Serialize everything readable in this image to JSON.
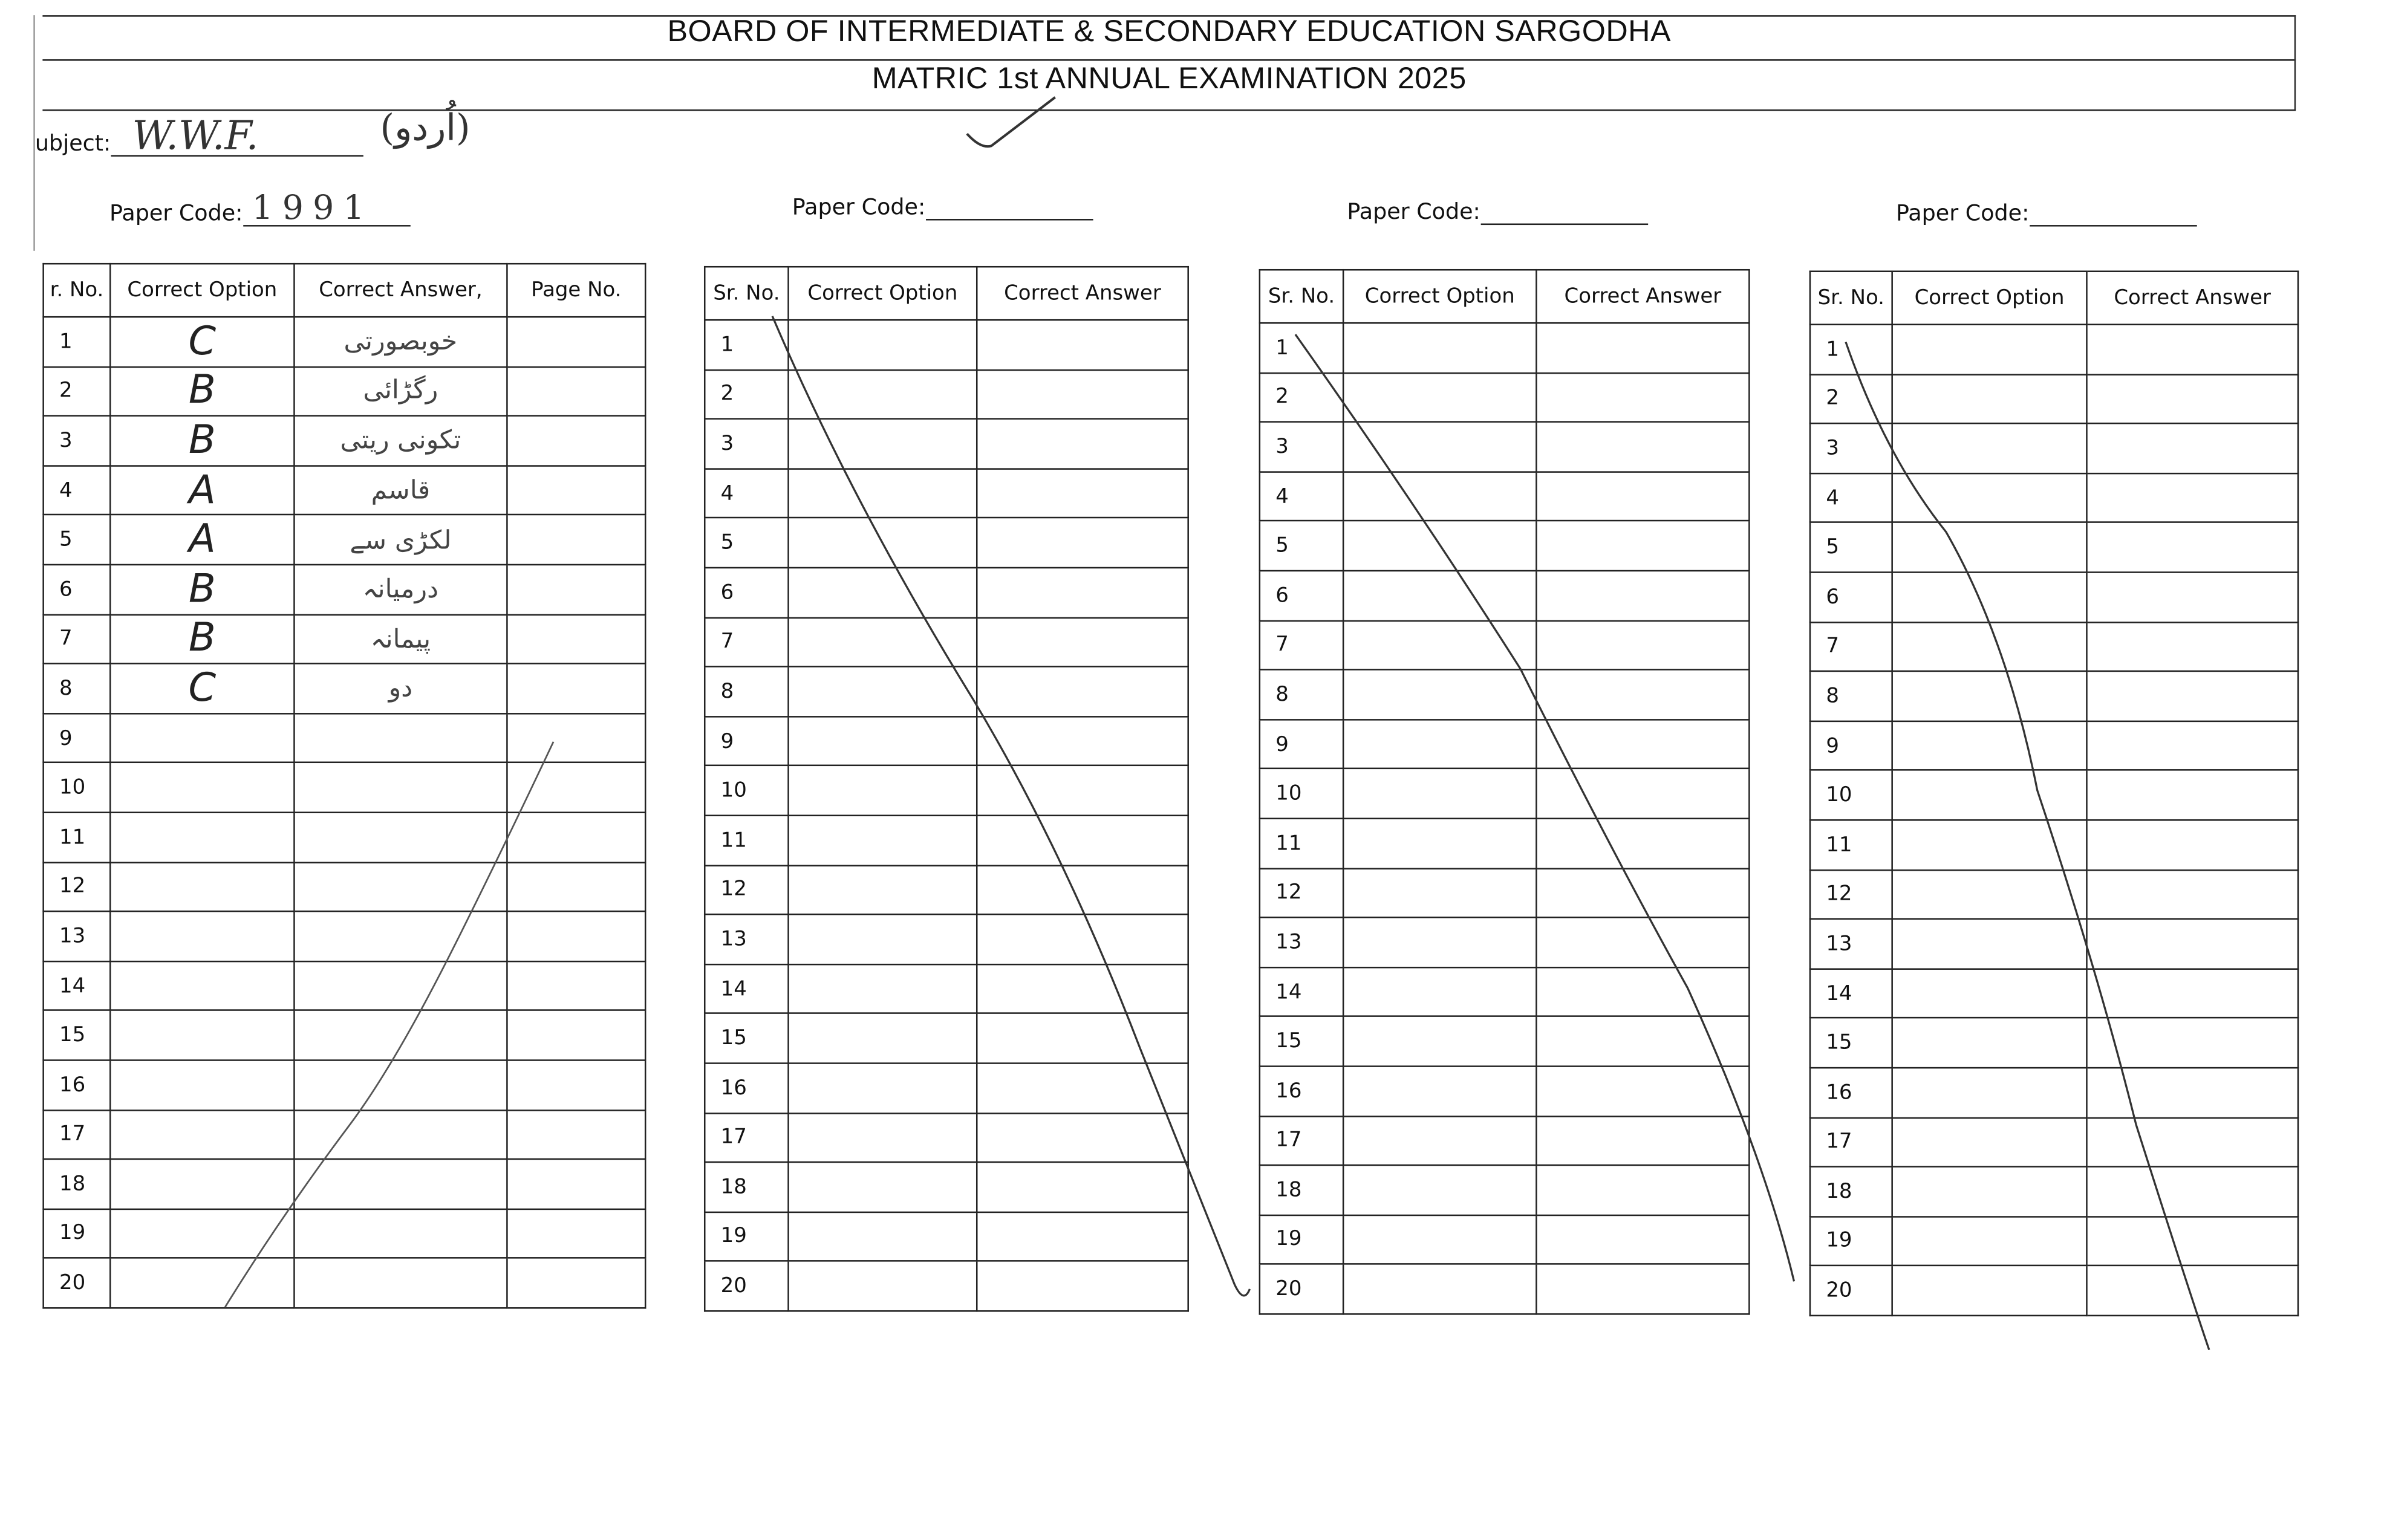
{
  "header": {
    "title": "BOARD OF INTERMEDIATE & SECONDARY EDUCATION SARGODHA",
    "subtitle": "MATRIC 1st  ANNUAL EXAMINATION 2025"
  },
  "subject": {
    "label": "ubject:",
    "value": "W.W.F.",
    "note": "(اُردو)"
  },
  "paper_codes": [
    {
      "label": "Paper Code:",
      "value": "1991"
    },
    {
      "label": "Paper Code:",
      "value": ""
    },
    {
      "label": "Paper Code:",
      "value": ""
    },
    {
      "label": "Paper Code:",
      "value": ""
    }
  ],
  "tables": [
    {
      "headers": [
        "r. No.",
        "Correct Option",
        "Correct Answer,",
        "Page No."
      ],
      "rows": [
        {
          "sr": "1",
          "option": "C",
          "answer": "خوبصورتی",
          "page": ""
        },
        {
          "sr": "2",
          "option": "B",
          "answer": "رگڑائی",
          "page": ""
        },
        {
          "sr": "3",
          "option": "B",
          "answer": "تکونی ریتی",
          "page": ""
        },
        {
          "sr": "4",
          "option": "A",
          "answer": "قاسم",
          "page": ""
        },
        {
          "sr": "5",
          "option": "A",
          "answer": "لکڑی سے",
          "page": ""
        },
        {
          "sr": "6",
          "option": "B",
          "answer": "درمیانہ",
          "page": ""
        },
        {
          "sr": "7",
          "option": "B",
          "answer": "پیمانہ",
          "page": ""
        },
        {
          "sr": "8",
          "option": "C",
          "answer": "دو",
          "page": ""
        },
        {
          "sr": "9"
        },
        {
          "sr": "10"
        },
        {
          "sr": "11"
        },
        {
          "sr": "12"
        },
        {
          "sr": "13"
        },
        {
          "sr": "14"
        },
        {
          "sr": "15"
        },
        {
          "sr": "16"
        },
        {
          "sr": "17"
        },
        {
          "sr": "18"
        },
        {
          "sr": "19"
        },
        {
          "sr": "20"
        }
      ]
    },
    {
      "headers": [
        "Sr. No.",
        "Correct Option",
        "Correct Answer"
      ],
      "rows": [
        {
          "sr": "1"
        },
        {
          "sr": "2"
        },
        {
          "sr": "3"
        },
        {
          "sr": "4"
        },
        {
          "sr": "5"
        },
        {
          "sr": "6"
        },
        {
          "sr": "7"
        },
        {
          "sr": "8"
        },
        {
          "sr": "9"
        },
        {
          "sr": "10"
        },
        {
          "sr": "11"
        },
        {
          "sr": "12"
        },
        {
          "sr": "13"
        },
        {
          "sr": "14"
        },
        {
          "sr": "15"
        },
        {
          "sr": "16"
        },
        {
          "sr": "17"
        },
        {
          "sr": "18"
        },
        {
          "sr": "19"
        },
        {
          "sr": "20"
        }
      ]
    },
    {
      "headers": [
        "Sr. No.",
        "Correct Option",
        "Correct Answer"
      ],
      "rows": [
        {
          "sr": "1"
        },
        {
          "sr": "2"
        },
        {
          "sr": "3"
        },
        {
          "sr": "4"
        },
        {
          "sr": "5"
        },
        {
          "sr": "6"
        },
        {
          "sr": "7"
        },
        {
          "sr": "8"
        },
        {
          "sr": "9"
        },
        {
          "sr": "10"
        },
        {
          "sr": "11"
        },
        {
          "sr": "12"
        },
        {
          "sr": "13"
        },
        {
          "sr": "14"
        },
        {
          "sr": "15"
        },
        {
          "sr": "16"
        },
        {
          "sr": "17"
        },
        {
          "sr": "18"
        },
        {
          "sr": "19"
        },
        {
          "sr": "20"
        }
      ]
    },
    {
      "headers": [
        "Sr. No.",
        "Correct Option",
        "Correct Answer"
      ],
      "rows": [
        {
          "sr": "1"
        },
        {
          "sr": "2"
        },
        {
          "sr": "3"
        },
        {
          "sr": "4"
        },
        {
          "sr": "5"
        },
        {
          "sr": "6"
        },
        {
          "sr": "7"
        },
        {
          "sr": "8"
        },
        {
          "sr": "9"
        },
        {
          "sr": "10"
        },
        {
          "sr": "11"
        },
        {
          "sr": "12"
        },
        {
          "sr": "13"
        },
        {
          "sr": "14"
        },
        {
          "sr": "15"
        },
        {
          "sr": "16"
        },
        {
          "sr": "17"
        },
        {
          "sr": "18"
        },
        {
          "sr": "19"
        },
        {
          "sr": "20"
        }
      ]
    }
  ],
  "colors": {
    "ink": "#222222",
    "pencil": "#444444",
    "paper": "#ffffff"
  }
}
